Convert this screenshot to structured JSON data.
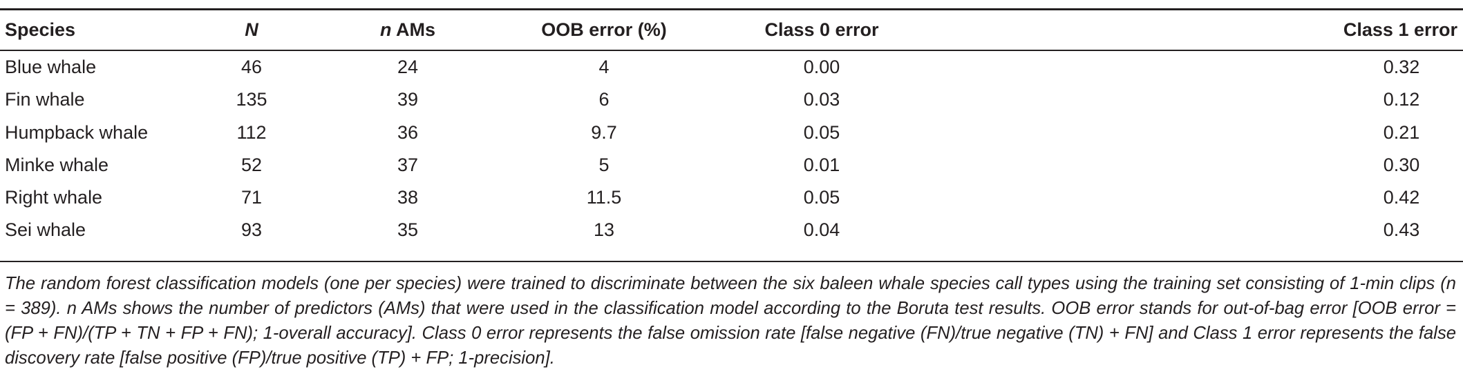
{
  "table": {
    "headers": {
      "species": "Species",
      "n_big": "N",
      "n_ams_italic": "n",
      "n_ams_rest": " AMs",
      "oob": "OOB error (%)",
      "class0": "Class 0 error",
      "class1": "Class 1 error"
    },
    "rows": [
      {
        "species": "Blue whale",
        "n": "46",
        "n_ams": "24",
        "oob": "4",
        "class0": "0.00",
        "class1": "0.32"
      },
      {
        "species": "Fin whale",
        "n": "135",
        "n_ams": "39",
        "oob": "6",
        "class0": "0.03",
        "class1": "0.12"
      },
      {
        "species": "Humpback whale",
        "n": "112",
        "n_ams": "36",
        "oob": "9.7",
        "class0": "0.05",
        "class1": "0.21"
      },
      {
        "species": "Minke whale",
        "n": "52",
        "n_ams": "37",
        "oob": "5",
        "class0": "0.01",
        "class1": "0.30"
      },
      {
        "species": "Right whale",
        "n": "71",
        "n_ams": "38",
        "oob": "11.5",
        "class0": "0.05",
        "class1": "0.42"
      },
      {
        "species": "Sei whale",
        "n": "93",
        "n_ams": "35",
        "oob": "13",
        "class0": "0.04",
        "class1": "0.43"
      }
    ]
  },
  "footnote": "The random forest classification models (one per species) were trained to discriminate between the six baleen whale species call types using the training set consisting of 1-min clips (n = 389). n AMs shows the number of predictors (AMs) that were used in the classification model according to the Boruta test results. OOB error stands for out-of-bag error [OOB error = (FP + FN)/(TP + TN + FP + FN); 1-overall accuracy]. Class 0 error represents the false omission rate [false negative (FN)/true negative (TN) + FN] and Class 1 error represents the false discovery rate [false positive (FP)/true positive (TP) + FP; 1-precision]."
}
